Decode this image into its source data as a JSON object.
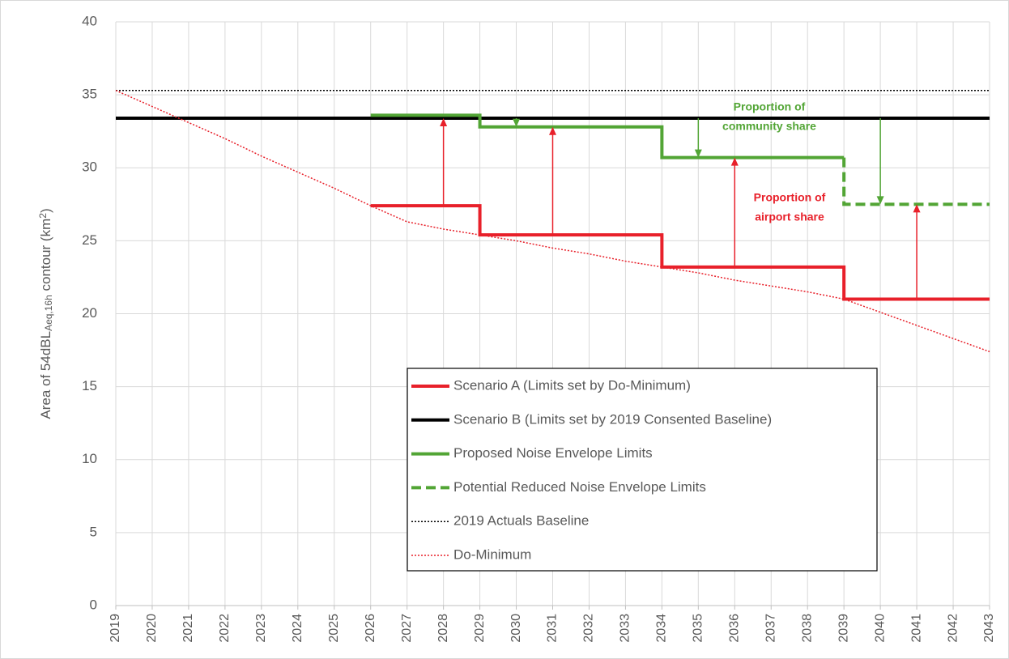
{
  "chart_data": {
    "type": "line",
    "ylabel": [
      "Area of 54dBL",
      "Aeq,16h",
      " contour (km",
      "2",
      ")"
    ],
    "xlim": [
      2019,
      2043
    ],
    "xticks": [
      2019,
      2020,
      2021,
      2022,
      2023,
      2024,
      2025,
      2026,
      2027,
      2028,
      2029,
      2030,
      2031,
      2032,
      2033,
      2034,
      2035,
      2036,
      2037,
      2038,
      2039,
      2040,
      2041,
      2042,
      2043
    ],
    "ylim": [
      0,
      40
    ],
    "yticks": [
      0,
      5,
      10,
      15,
      20,
      25,
      30,
      35,
      40
    ],
    "grid": true,
    "series": [
      {
        "name": "Scenario A (Limits set by Do-Minimum)",
        "color": "#e8202a",
        "dash": "solid",
        "width": 4,
        "x": [
          2026,
          2029,
          2029,
          2034,
          2034,
          2039,
          2039,
          2043
        ],
        "values": [
          27.4,
          27.4,
          25.4,
          25.4,
          23.2,
          23.2,
          21.0,
          21.0
        ]
      },
      {
        "name": "Scenario B (Limits set by 2019 Consented Baseline)",
        "color": "#000000",
        "dash": "solid",
        "width": 4,
        "x": [
          2019,
          2043
        ],
        "values": [
          33.4,
          33.4
        ]
      },
      {
        "name": "Proposed Noise Envelope Limits",
        "color": "#52a535",
        "dash": "solid",
        "width": 4,
        "x": [
          2026,
          2029,
          2029,
          2034,
          2034,
          2039
        ],
        "values": [
          33.6,
          33.6,
          32.8,
          32.8,
          30.7,
          30.7
        ]
      },
      {
        "name": "Potential Reduced Noise Envelope Limits",
        "color": "#52a535",
        "dash": "dashed",
        "width": 4,
        "x": [
          2039,
          2039,
          2043
        ],
        "values": [
          30.7,
          27.5,
          27.5
        ]
      },
      {
        "name": "2019 Actuals Baseline",
        "color": "#000000",
        "dash": "dotted",
        "width": 1.5,
        "x": [
          2019,
          2043
        ],
        "values": [
          35.3,
          35.3
        ]
      },
      {
        "name": "Do-Minimum",
        "color": "#e8202a",
        "dash": "dotted",
        "width": 1.5,
        "x": [
          2019,
          2020,
          2021,
          2022,
          2023,
          2024,
          2025,
          2026,
          2027,
          2028,
          2029,
          2030,
          2031,
          2032,
          2033,
          2034,
          2035,
          2036,
          2037,
          2038,
          2039,
          2040,
          2041,
          2042,
          2043
        ],
        "values": [
          35.3,
          34.2,
          33.1,
          32.0,
          30.8,
          29.7,
          28.6,
          27.4,
          26.3,
          25.8,
          25.4,
          25.0,
          24.5,
          24.1,
          23.6,
          23.2,
          22.8,
          22.3,
          21.9,
          21.5,
          21.0,
          20.1,
          19.2,
          18.3,
          17.4
        ]
      }
    ],
    "arrows": [
      {
        "x": 2028,
        "from": 27.4,
        "to": 33.4,
        "color": "#e8202a"
      },
      {
        "x": 2031,
        "from": 25.4,
        "to": 32.8,
        "color": "#e8202a"
      },
      {
        "x": 2036,
        "from": 23.2,
        "to": 30.7,
        "color": "#e8202a"
      },
      {
        "x": 2041,
        "from": 21.0,
        "to": 27.5,
        "color": "#e8202a"
      },
      {
        "x": 2030,
        "from": 33.4,
        "to": 32.8,
        "color": "#52a535"
      },
      {
        "x": 2035,
        "from": 33.4,
        "to": 30.7,
        "color": "#52a535"
      },
      {
        "x": 2040,
        "from": 33.4,
        "to": 27.5,
        "color": "#52a535"
      }
    ],
    "annotations": [
      {
        "lines": [
          "Proportion of",
          "community share"
        ],
        "color": "#52a535"
      },
      {
        "lines": [
          "Proportion of",
          "airport share"
        ],
        "color": "#e8202a"
      }
    ]
  }
}
